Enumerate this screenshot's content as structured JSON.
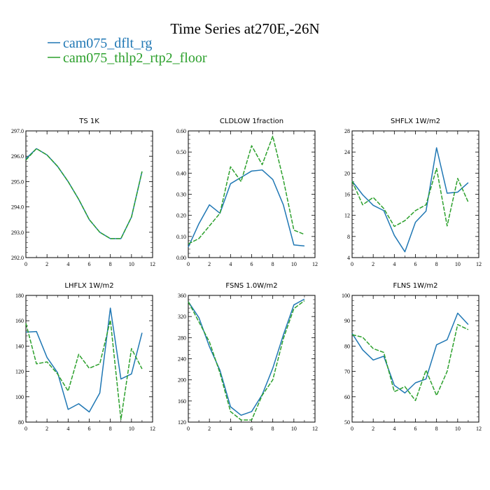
{
  "figure": {
    "title": "Time Series at270E,-26N",
    "legend": [
      {
        "label": "cam075_dflt_rg",
        "color": "#1f77b4",
        "dash": "solid"
      },
      {
        "label": "cam075_thlp2_rtp2_floor",
        "color": "#2ca02c",
        "dash": "dashed"
      }
    ]
  },
  "chart_data": [
    {
      "type": "line",
      "title": "TS   1K",
      "x": [
        0,
        1,
        2,
        3,
        4,
        5,
        6,
        7,
        8,
        9,
        10,
        11
      ],
      "xlim": [
        0,
        12
      ],
      "xticks": [
        0,
        2,
        4,
        6,
        8,
        10,
        12
      ],
      "xtick_labels": [
        "0",
        "2",
        "4",
        "6",
        "8",
        "10",
        "12"
      ],
      "ylim": [
        292,
        297
      ],
      "yticks": [
        292,
        293,
        294,
        295,
        296,
        297
      ],
      "ytick_labels": [
        "292.0",
        "293.0",
        "294.0",
        "295.0",
        "296.0",
        "297.0"
      ],
      "series": [
        {
          "name": "cam075_dflt_rg",
          "values": [
            295.9,
            296.3,
            296.05,
            295.6,
            295.0,
            294.3,
            293.5,
            293.0,
            292.75,
            292.75,
            293.6,
            295.4
          ]
        },
        {
          "name": "cam075_thlp2_rtp2_floor",
          "values": [
            295.85,
            296.3,
            296.05,
            295.6,
            295.0,
            294.3,
            293.5,
            293.0,
            292.75,
            292.75,
            293.6,
            295.4
          ]
        }
      ]
    },
    {
      "type": "line",
      "title": "CLDLOW   1fraction",
      "x": [
        0,
        1,
        2,
        3,
        4,
        5,
        6,
        7,
        8,
        9,
        10,
        11
      ],
      "xlim": [
        0,
        12
      ],
      "xticks": [
        0,
        2,
        4,
        6,
        8,
        10,
        12
      ],
      "xtick_labels": [
        "0",
        "2",
        "4",
        "6",
        "8",
        "10",
        "12"
      ],
      "ylim": [
        0,
        0.6
      ],
      "yticks": [
        0,
        0.1,
        0.2,
        0.3,
        0.4,
        0.5,
        0.6
      ],
      "ytick_labels": [
        "0.00",
        "0.10",
        "0.20",
        "0.30",
        "0.40",
        "0.50",
        "0.60"
      ],
      "series": [
        {
          "name": "cam075_dflt_rg",
          "values": [
            0.05,
            0.16,
            0.25,
            0.21,
            0.35,
            0.38,
            0.41,
            0.415,
            0.37,
            0.25,
            0.06,
            0.055
          ]
        },
        {
          "name": "cam075_thlp2_rtp2_floor",
          "values": [
            0.065,
            0.09,
            0.15,
            0.21,
            0.43,
            0.36,
            0.53,
            0.44,
            0.575,
            0.37,
            0.13,
            0.11
          ]
        }
      ]
    },
    {
      "type": "line",
      "title": "SHFLX   1W/m2",
      "x": [
        0,
        1,
        2,
        3,
        4,
        5,
        6,
        7,
        8,
        9,
        10,
        11
      ],
      "xlim": [
        0,
        12
      ],
      "xticks": [
        0,
        2,
        4,
        6,
        8,
        10,
        12
      ],
      "xtick_labels": [
        "0",
        "2",
        "4",
        "6",
        "8",
        "10",
        "12"
      ],
      "ylim": [
        4,
        28
      ],
      "yticks": [
        4,
        8,
        12,
        16,
        20,
        24,
        28
      ],
      "ytick_labels": [
        "4",
        "8",
        "12",
        "16",
        "20",
        "24",
        "28"
      ],
      "series": [
        {
          "name": "cam075_dflt_rg",
          "values": [
            18.5,
            15.9,
            13.9,
            12.9,
            8.2,
            5.1,
            10.7,
            12.8,
            24.8,
            16.2,
            16.4,
            18.2
          ]
        },
        {
          "name": "cam075_thlp2_rtp2_floor",
          "values": [
            18.5,
            14.0,
            15.4,
            13.3,
            9.9,
            11.0,
            12.9,
            14.0,
            20.9,
            10.0,
            19.0,
            14.5
          ]
        }
      ]
    },
    {
      "type": "line",
      "title": "LHFLX   1W/m2",
      "x": [
        0,
        1,
        2,
        3,
        4,
        5,
        6,
        7,
        8,
        9,
        10,
        11
      ],
      "xlim": [
        0,
        12
      ],
      "xticks": [
        0,
        2,
        4,
        6,
        8,
        10,
        12
      ],
      "xtick_labels": [
        "0",
        "2",
        "4",
        "6",
        "8",
        "10",
        "12"
      ],
      "ylim": [
        80,
        180
      ],
      "yticks": [
        80,
        100,
        120,
        140,
        160,
        180
      ],
      "ytick_labels": [
        "80",
        "100",
        "120",
        "140",
        "160",
        "180"
      ],
      "series": [
        {
          "name": "cam075_dflt_rg",
          "values": [
            151,
            151.5,
            131,
            119,
            90,
            94.5,
            88,
            103,
            170,
            114,
            118,
            150.5
          ]
        },
        {
          "name": "cam075_thlp2_rtp2_floor",
          "values": [
            158,
            126,
            127.5,
            118,
            104.5,
            133.5,
            122.5,
            126,
            160.5,
            82,
            138,
            122
          ]
        }
      ]
    },
    {
      "type": "line",
      "title": "FSNS   1.0W/m2",
      "x": [
        0,
        1,
        2,
        3,
        4,
        5,
        6,
        7,
        8,
        9,
        10,
        11
      ],
      "xlim": [
        0,
        12
      ],
      "xticks": [
        0,
        2,
        4,
        6,
        8,
        10,
        12
      ],
      "xtick_labels": [
        "0",
        "2",
        "4",
        "6",
        "8",
        "10",
        "12"
      ],
      "ylim": [
        120,
        360
      ],
      "yticks": [
        120,
        160,
        200,
        240,
        280,
        320,
        360
      ],
      "ytick_labels": [
        "120",
        "160",
        "200",
        "240",
        "280",
        "320",
        "360"
      ],
      "series": [
        {
          "name": "cam075_dflt_rg",
          "values": [
            348,
            318,
            263,
            218,
            149,
            133,
            140,
            172,
            222,
            285,
            342,
            353
          ]
        },
        {
          "name": "cam075_thlp2_rtp2_floor",
          "values": [
            348,
            310,
            272,
            213,
            140,
            124,
            124,
            171,
            200,
            278,
            335,
            350
          ]
        }
      ]
    },
    {
      "type": "line",
      "title": "FLNS   1W/m2",
      "x": [
        0,
        1,
        2,
        3,
        4,
        5,
        6,
        7,
        8,
        9,
        10,
        11
      ],
      "xlim": [
        0,
        12
      ],
      "xticks": [
        0,
        2,
        4,
        6,
        8,
        10,
        12
      ],
      "xtick_labels": [
        "0",
        "2",
        "4",
        "6",
        "8",
        "10",
        "12"
      ],
      "ylim": [
        50,
        100
      ],
      "yticks": [
        50,
        60,
        70,
        80,
        90,
        100
      ],
      "ytick_labels": [
        "50",
        "60",
        "70",
        "80",
        "90",
        "100"
      ],
      "series": [
        {
          "name": "cam075_dflt_rg",
          "values": [
            85,
            78.5,
            74.5,
            76,
            64.5,
            61.5,
            65.5,
            67,
            80.5,
            82.5,
            93,
            88.5
          ]
        },
        {
          "name": "cam075_thlp2_rtp2_floor",
          "values": [
            84.5,
            83.5,
            79,
            77.5,
            62,
            64,
            58.5,
            70.5,
            60.5,
            70,
            88.5,
            86.5
          ]
        }
      ]
    }
  ]
}
